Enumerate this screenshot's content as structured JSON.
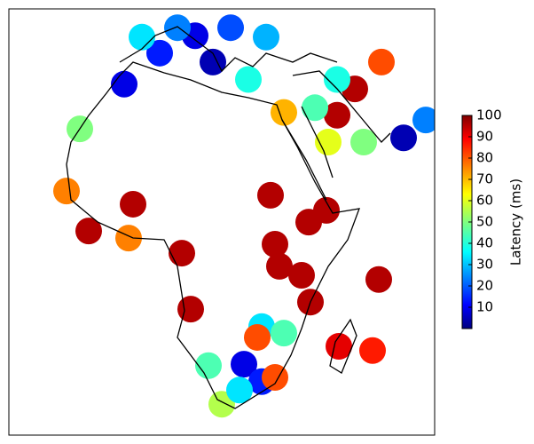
{
  "chart_data": {
    "type": "map-points",
    "colorbar_label": "Latency (ms)",
    "colormap": "jet",
    "clim": [
      0,
      100
    ],
    "cticks": [
      10,
      20,
      30,
      40,
      50,
      60,
      70,
      80,
      90,
      100
    ],
    "points": [
      {
        "lon": -17,
        "lat": 11.3,
        "value": 75
      },
      {
        "lon": -2,
        "lat": 8.5,
        "value": 95
      },
      {
        "lon": -12,
        "lat": 2.8,
        "value": 95
      },
      {
        "lon": -3,
        "lat": 1.3,
        "value": 75
      },
      {
        "lon": 9,
        "lat": -1.9,
        "value": 95
      },
      {
        "lon": 11,
        "lat": -13.8,
        "value": 95
      },
      {
        "lon": 29,
        "lat": 10.4,
        "value": 95
      },
      {
        "lon": 41.6,
        "lat": 7.2,
        "value": 95
      },
      {
        "lon": 37.6,
        "lat": 4.7,
        "value": 95
      },
      {
        "lon": 30,
        "lat": 0,
        "value": 95
      },
      {
        "lon": 31,
        "lat": -4.7,
        "value": 95
      },
      {
        "lon": 36,
        "lat": -6.6,
        "value": 95
      },
      {
        "lon": 38,
        "lat": -12.3,
        "value": 95
      },
      {
        "lon": 53.4,
        "lat": -7.5,
        "value": 95
      },
      {
        "lon": 44.4,
        "lat": -21.7,
        "value": 90
      },
      {
        "lon": 52,
        "lat": -22.6,
        "value": 85
      },
      {
        "lon": 27,
        "lat": -17.5,
        "value": 35
      },
      {
        "lon": 26,
        "lat": -19.8,
        "value": 80
      },
      {
        "lon": 32,
        "lat": -18.9,
        "value": 45
      },
      {
        "lon": 23,
        "lat": -25.5,
        "value": 10
      },
      {
        "lon": 27,
        "lat": -29.2,
        "value": 15
      },
      {
        "lon": 30,
        "lat": -28.3,
        "value": 80
      },
      {
        "lon": 15,
        "lat": -25.8,
        "value": 45
      },
      {
        "lon": 18,
        "lat": -34,
        "value": 55
      },
      {
        "lon": 22,
        "lat": -31,
        "value": 35
      },
      {
        "lon": -14,
        "lat": 24.5,
        "value": 50
      },
      {
        "lon": -4,
        "lat": 34,
        "value": 10
      },
      {
        "lon": 4,
        "lat": 40.6,
        "value": 15
      },
      {
        "lon": 12,
        "lat": 44.3,
        "value": 10
      },
      {
        "lon": 20,
        "lat": 46,
        "value": 20
      },
      {
        "lon": 28,
        "lat": 44,
        "value": 30
      },
      {
        "lon": 8,
        "lat": 46,
        "value": 25
      },
      {
        "lon": 0,
        "lat": 44,
        "value": 35
      },
      {
        "lon": 16,
        "lat": 38.7,
        "value": 5
      },
      {
        "lon": 24,
        "lat": 35,
        "value": 40
      },
      {
        "lon": 32,
        "lat": 28,
        "value": 70
      },
      {
        "lon": 44,
        "lat": 27.4,
        "value": 95
      },
      {
        "lon": 48,
        "lat": 33,
        "value": 95
      },
      {
        "lon": 54,
        "lat": 38.7,
        "value": 80
      },
      {
        "lon": 42,
        "lat": 21.7,
        "value": 60
      },
      {
        "lon": 50,
        "lat": 21.7,
        "value": 50
      },
      {
        "lon": 59,
        "lat": 22.6,
        "value": 5
      },
      {
        "lon": 64,
        "lat": 26.4,
        "value": 25
      },
      {
        "lon": 39,
        "lat": 29,
        "value": 45
      },
      {
        "lon": 44,
        "lat": 35,
        "value": 40
      }
    ]
  }
}
